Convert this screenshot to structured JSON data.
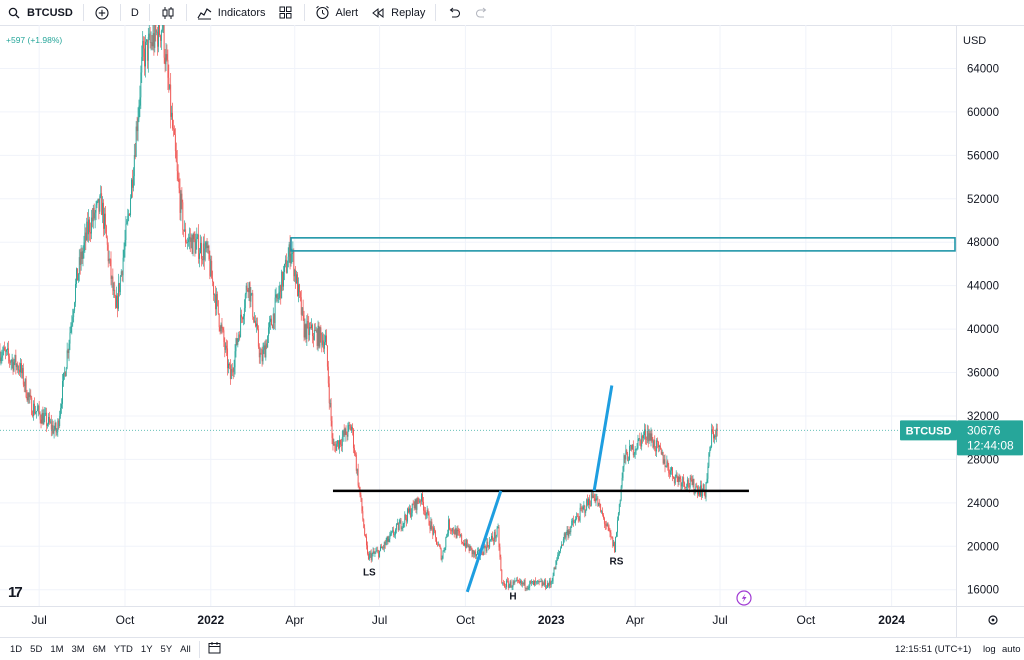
{
  "toolbar": {
    "symbol": "BTCUSD",
    "interval": "D",
    "indicators_label": "Indicators",
    "alert_label": "Alert",
    "replay_label": "Replay",
    "icons": [
      "search-icon",
      "add-symbol-icon",
      "candle-type-icon",
      "indicators-icon",
      "layout-grid-icon",
      "alert-clock-icon",
      "replay-icon",
      "undo-icon",
      "redo-icon"
    ]
  },
  "header": {
    "price_change": "+597 (+1.98%)",
    "currency": "USD"
  },
  "price_tag": {
    "symbol": "BTCUSD",
    "price": "30676",
    "countdown": "12:44:08"
  },
  "bottom_bar": {
    "ranges": [
      "1D",
      "5D",
      "1M",
      "3M",
      "6M",
      "YTD",
      "1Y",
      "5Y",
      "All"
    ],
    "time": "12:15:51 (UTC+1)",
    "log_label": "log",
    "auto_label": "auto"
  },
  "colors": {
    "up": "#26a69a",
    "down": "#ef5350",
    "trendline": "#1e9ee0",
    "zone": "#1f96a8",
    "neckline": "#000000",
    "tag_bg": "#26a69a"
  },
  "chart_data": {
    "type": "candlestick",
    "symbol": "BTCUSD",
    "x_range": [
      "2021-05-20",
      "2024-03-10"
    ],
    "ylim": [
      14500,
      68000
    ],
    "y_ticks": [
      16000,
      20000,
      24000,
      28000,
      32000,
      36000,
      40000,
      44000,
      48000,
      52000,
      56000,
      60000,
      64000
    ],
    "x_ticks": [
      {
        "date": "2021-07-01",
        "label": "Jul"
      },
      {
        "date": "2021-10-01",
        "label": "Oct"
      },
      {
        "date": "2022-01-01",
        "label": "2022"
      },
      {
        "date": "2022-04-01",
        "label": "Apr"
      },
      {
        "date": "2022-07-01",
        "label": "Jul"
      },
      {
        "date": "2022-10-01",
        "label": "Oct"
      },
      {
        "date": "2023-01-01",
        "label": "2023"
      },
      {
        "date": "2023-04-01",
        "label": "Apr"
      },
      {
        "date": "2023-07-01",
        "label": "Jul"
      },
      {
        "date": "2023-10-01",
        "label": "Oct"
      },
      {
        "date": "2024-01-01",
        "label": "2024"
      }
    ],
    "price_path": [
      [
        "2021-05-20",
        38000
      ],
      [
        "2021-06-10",
        36500
      ],
      [
        "2021-06-22",
        33000
      ],
      [
        "2021-07-20",
        30500
      ],
      [
        "2021-08-10",
        44500
      ],
      [
        "2021-08-23",
        49500
      ],
      [
        "2021-09-06",
        51500
      ],
      [
        "2021-09-21",
        41500
      ],
      [
        "2021-10-05",
        50500
      ],
      [
        "2021-10-20",
        65000
      ],
      [
        "2021-11-10",
        68000
      ],
      [
        "2021-11-26",
        54000
      ],
      [
        "2021-12-04",
        48500
      ],
      [
        "2021-12-28",
        47000
      ],
      [
        "2022-01-22",
        35500
      ],
      [
        "2022-02-10",
        44500
      ],
      [
        "2022-02-24",
        37000
      ],
      [
        "2022-03-28",
        47500
      ],
      [
        "2022-04-11",
        40000
      ],
      [
        "2022-05-04",
        39000
      ],
      [
        "2022-05-12",
        29000
      ],
      [
        "2022-06-01",
        31000
      ],
      [
        "2022-06-18",
        19000
      ],
      [
        "2022-07-01",
        19500
      ],
      [
        "2022-08-14",
        24500
      ],
      [
        "2022-09-06",
        19000
      ],
      [
        "2022-09-13",
        22000
      ],
      [
        "2022-10-13",
        19000
      ],
      [
        "2022-11-05",
        21300
      ],
      [
        "2022-11-09",
        16500
      ],
      [
        "2022-12-31",
        16500
      ],
      [
        "2023-01-14",
        20800
      ],
      [
        "2023-02-16",
        24800
      ],
      [
        "2023-03-10",
        19800
      ],
      [
        "2023-03-20",
        28000
      ],
      [
        "2023-04-14",
        30500
      ],
      [
        "2023-05-12",
        26500
      ],
      [
        "2023-06-15",
        25000
      ],
      [
        "2023-06-22",
        30200
      ],
      [
        "2023-06-28",
        30676
      ]
    ],
    "last_price": 30676,
    "annotations": {
      "resistance_zone": {
        "start": "2022-03-28",
        "end": "2024-03-10",
        "low": 47200,
        "high": 48400
      },
      "neckline": {
        "start": "2022-05-12",
        "end": "2023-08-01",
        "price": 25100
      },
      "trendlines": [
        {
          "start": [
            "2022-10-03",
            15800
          ],
          "end": [
            "2022-11-08",
            25100
          ]
        },
        {
          "start": [
            "2023-02-16",
            25100
          ],
          "end": [
            "2023-03-07",
            34800
          ]
        }
      ],
      "labels": [
        {
          "text": "LS",
          "date": "2022-06-20",
          "price": 17300
        },
        {
          "text": "H",
          "date": "2022-11-21",
          "price": 15100
        },
        {
          "text": "RS",
          "date": "2023-03-12",
          "price": 18300
        }
      ]
    }
  }
}
